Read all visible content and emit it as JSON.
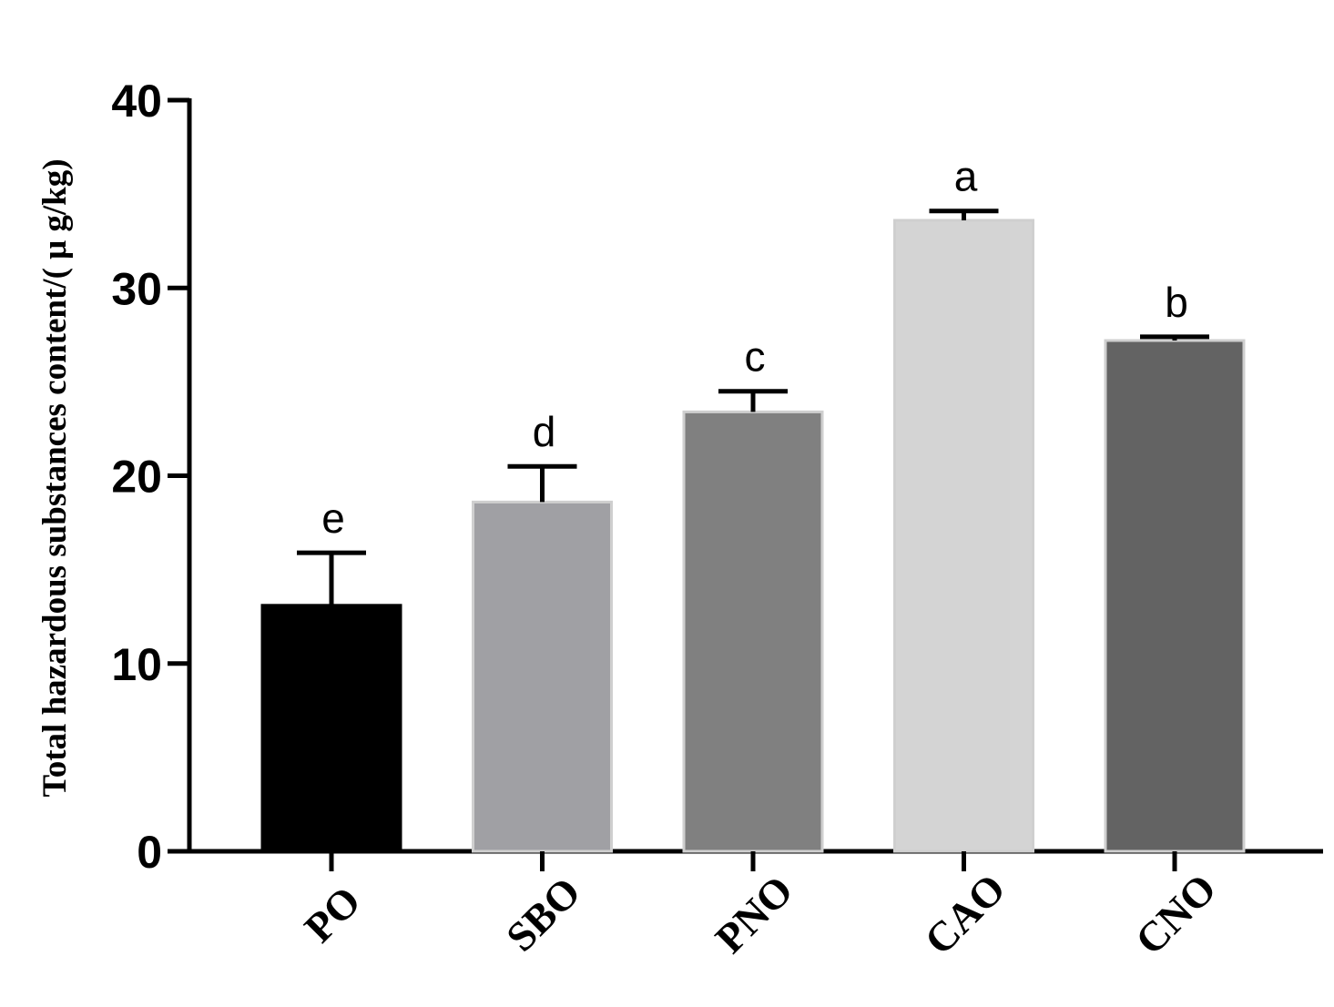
{
  "chart_data": {
    "type": "bar",
    "title": "",
    "xlabel": "",
    "ylabel": "Total hazardous substances content/( μ g/kg)",
    "ylim": [
      0,
      40
    ],
    "yticks": [
      0,
      10,
      20,
      30,
      40
    ],
    "categories": [
      "PO",
      "SBO",
      "PNO",
      "CAO",
      "CNO"
    ],
    "values": [
      13.1,
      18.6,
      23.4,
      33.6,
      27.2
    ],
    "errors": [
      2.8,
      1.9,
      1.1,
      0.5,
      0.2
    ],
    "significance": [
      "e",
      "d",
      "c",
      "a",
      "b"
    ],
    "colors": [
      "#000000",
      "#a0a0a4",
      "#808080",
      "#d4d4d4",
      "#636363"
    ],
    "grid": false,
    "legend": "none"
  }
}
